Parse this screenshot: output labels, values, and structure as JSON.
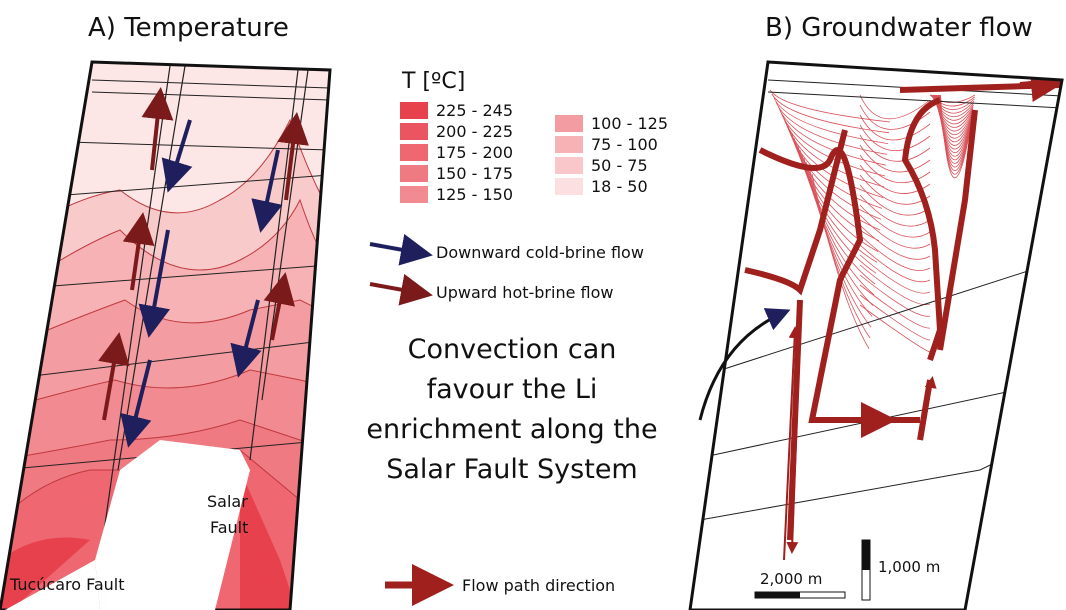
{
  "panel_a": {
    "title": "A) Temperature",
    "legend_title": "T [ºC]",
    "legend": [
      {
        "label": "225 - 245",
        "color": "#e8414e"
      },
      {
        "label": "200 - 225",
        "color": "#eb5461"
      },
      {
        "label": "175 - 200",
        "color": "#ee6771"
      },
      {
        "label": "150 - 175",
        "color": "#f07a82"
      },
      {
        "label": "125 - 150",
        "color": "#f28b91"
      },
      {
        "label": "100 - 125",
        "color": "#f39ca1"
      },
      {
        "label": "75 - 100",
        "color": "#f6b2b5"
      },
      {
        "label": "50 - 75",
        "color": "#f9c7c9"
      },
      {
        "label": "18 - 50",
        "color": "#fcdfe0"
      }
    ],
    "arrow_legend": [
      {
        "label": "Downward cold-brine flow",
        "color": "#1f1f5e"
      },
      {
        "label": "Upward hot-brine flow",
        "color": "#7a1a1a"
      }
    ],
    "fault_labels": [
      "Salar",
      "Fault",
      "Tucúcaro Fault"
    ]
  },
  "panel_b": {
    "title": "B) Groundwater flow",
    "flow_legend": "Flow path direction",
    "scale_horizontal": "2,000 m",
    "scale_vertical": "1,000 m"
  },
  "note": [
    "Convection can",
    "favour the Li",
    "enrichment along the",
    "Salar Fault System"
  ]
}
